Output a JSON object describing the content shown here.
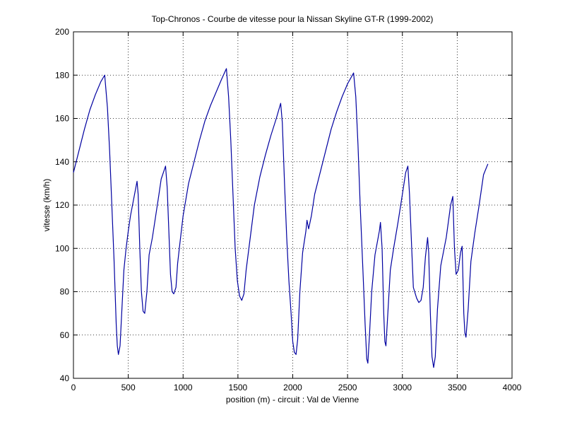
{
  "chart_data": {
    "type": "line",
    "title": "Top-Chronos - Courbe de vitesse pour la Nissan Skyline GT-R (1999-2002)",
    "x_label": "position (m) - circuit : Val de Vienne",
    "y_label": "vitesse (km/h)",
    "color": "#0000a0",
    "grid": true,
    "xlim": [
      0,
      4000
    ],
    "xticks": [
      0,
      500,
      1000,
      1500,
      2000,
      2500,
      3000,
      3500,
      4000
    ],
    "ylim": [
      40,
      200
    ],
    "yticks": [
      40,
      60,
      80,
      100,
      120,
      140,
      160,
      180,
      200
    ],
    "x": [
      0,
      50,
      100,
      150,
      200,
      250,
      285,
      310,
      330,
      350,
      370,
      390,
      400,
      410,
      425,
      440,
      460,
      480,
      500,
      520,
      550,
      580,
      590,
      605,
      620,
      635,
      650,
      670,
      690,
      720,
      750,
      780,
      800,
      820,
      840,
      855,
      870,
      885,
      900,
      915,
      935,
      950,
      970,
      1000,
      1050,
      1100,
      1150,
      1200,
      1250,
      1300,
      1350,
      1395,
      1415,
      1435,
      1455,
      1475,
      1495,
      1515,
      1535,
      1555,
      1575,
      1600,
      1650,
      1700,
      1750,
      1800,
      1850,
      1890,
      1905,
      1925,
      1945,
      1965,
      1985,
      2000,
      2015,
      2030,
      2045,
      2065,
      2090,
      2120,
      2130,
      2145,
      2170,
      2200,
      2250,
      2300,
      2350,
      2400,
      2450,
      2500,
      2555,
      2575,
      2595,
      2615,
      2640,
      2660,
      2675,
      2685,
      2700,
      2720,
      2750,
      2790,
      2800,
      2815,
      2830,
      2840,
      2850,
      2865,
      2890,
      2920,
      2960,
      3000,
      3030,
      3050,
      3065,
      3085,
      3100,
      3130,
      3150,
      3170,
      3190,
      3210,
      3230,
      3240,
      3255,
      3270,
      3285,
      3300,
      3320,
      3350,
      3400,
      3440,
      3460,
      3475,
      3490,
      3510,
      3530,
      3545,
      3560,
      3570,
      3580,
      3600,
      3625,
      3660,
      3700,
      3740,
      3780
    ],
    "values": [
      135,
      145,
      155,
      164,
      171,
      177,
      180,
      165,
      145,
      120,
      95,
      65,
      55,
      51,
      55,
      70,
      90,
      100,
      108,
      115,
      123,
      131,
      125,
      100,
      80,
      71,
      70,
      80,
      97,
      105,
      115,
      125,
      132,
      135,
      138,
      128,
      108,
      88,
      80,
      79,
      82,
      93,
      102,
      115,
      130,
      140,
      150,
      159,
      166,
      172,
      178,
      183,
      170,
      150,
      125,
      100,
      85,
      78,
      76,
      79,
      90,
      100,
      120,
      133,
      143,
      152,
      160,
      167,
      158,
      130,
      105,
      85,
      70,
      57,
      52,
      51,
      58,
      80,
      98,
      108,
      113,
      109,
      115,
      125,
      135,
      145,
      155,
      163,
      170,
      176,
      181,
      170,
      148,
      120,
      90,
      65,
      49,
      47,
      60,
      80,
      97,
      108,
      112,
      100,
      70,
      57,
      55,
      68,
      90,
      100,
      112,
      125,
      135,
      138,
      125,
      100,
      82,
      77,
      75,
      76,
      82,
      96,
      105,
      98,
      70,
      50,
      45,
      50,
      72,
      92,
      105,
      120,
      124,
      100,
      88,
      90,
      98,
      101,
      70,
      61,
      59,
      72,
      94,
      107,
      120,
      134,
      139
    ]
  }
}
